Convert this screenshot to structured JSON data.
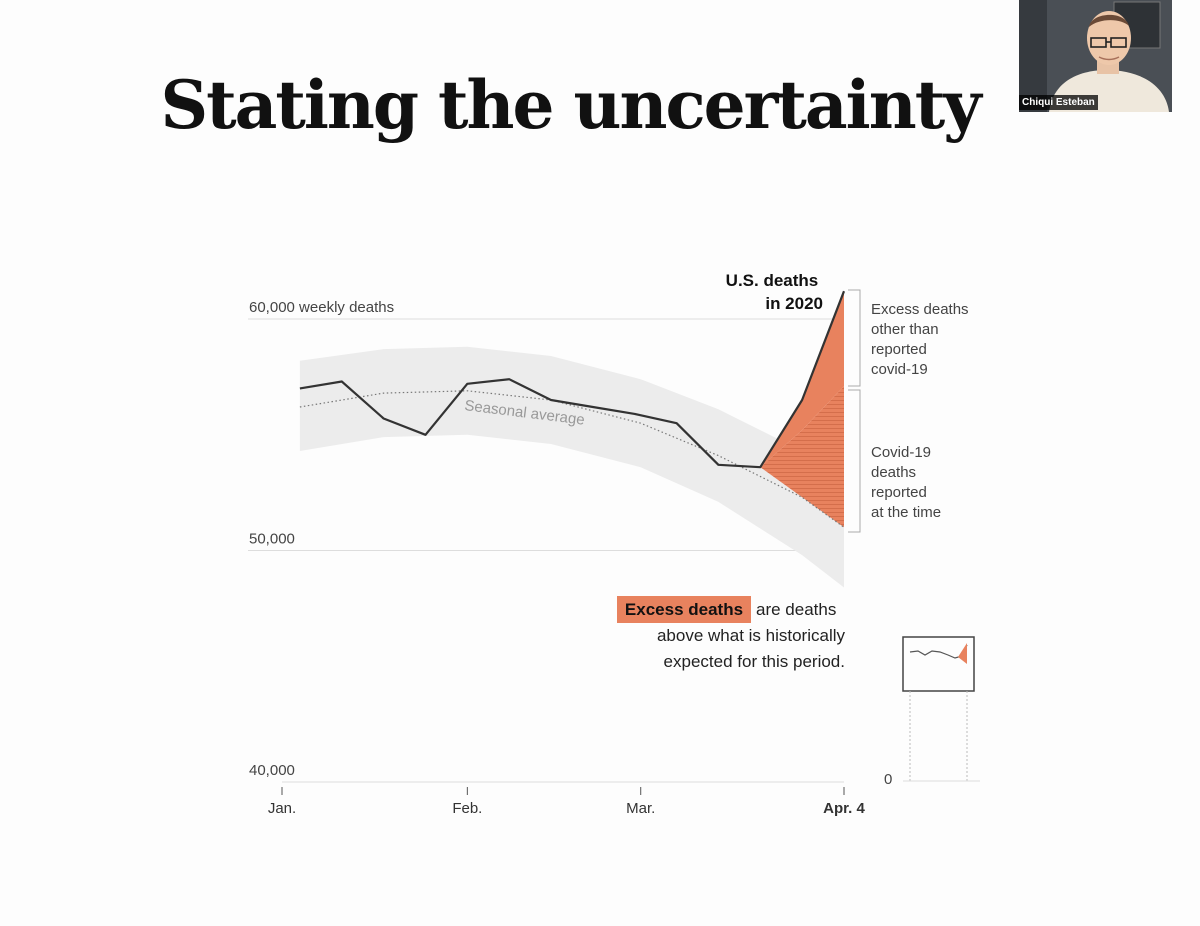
{
  "slide": {
    "title": "Stating the uncertainty"
  },
  "video": {
    "participant_name": "Chiqui Esteban"
  },
  "colors": {
    "excess": "#e8825e",
    "line": "#333333",
    "band": "#ececec",
    "grid": "#dddddd"
  },
  "chart_data": {
    "type": "line",
    "series": [
      {
        "x": [
          "2020-01-04",
          "2020-01-11",
          "2020-01-18",
          "2020-01-25",
          "2020-02-01",
          "2020-02-08",
          "2020-02-15",
          "2020-02-22",
          "2020-02-29",
          "2020-03-07",
          "2020-03-14",
          "2020-03-21",
          "2020-03-28",
          "2020-04-04"
        ],
        "values": [
          57000,
          57300,
          55700,
          55000,
          57200,
          57400,
          56500,
          56200,
          55900,
          55500,
          53700,
          53600,
          56500,
          61200
        ]
      }
    ],
    "seasonal_average": {
      "label": "Seasonal average",
      "x": [
        "2020-01-04",
        "2020-01-18",
        "2020-02-01",
        "2020-02-15",
        "2020-03-01",
        "2020-03-14",
        "2020-03-28",
        "2020-04-04"
      ],
      "values": [
        56200,
        56800,
        56900,
        56500,
        55500,
        54100,
        52300,
        51000
      ],
      "band_low": [
        54300,
        54900,
        55000,
        54600,
        53600,
        52100,
        49800,
        48400
      ],
      "band_high": [
        58200,
        58700,
        58800,
        58400,
        57400,
        56100,
        54300,
        53100
      ]
    },
    "reported_covid_line": {
      "x": [
        "2020-03-21",
        "2020-03-28",
        "2020-04-04"
      ],
      "values": [
        53600,
        55200,
        57100
      ]
    },
    "y_axis": {
      "ticks": [
        40000,
        50000,
        60000
      ],
      "tick_labels": [
        "40,000",
        "50,000",
        "60,000 weekly deaths"
      ],
      "ylim": [
        40000,
        62000
      ]
    },
    "x_axis": {
      "tick_labels": [
        "Jan.",
        "Feb.",
        "Mar.",
        "Apr. 4"
      ],
      "tick_dates": [
        "2020-01-01",
        "2020-02-01",
        "2020-03-01",
        "2020-04-04"
      ]
    },
    "annotations": {
      "series_label": [
        "U.S. deaths",
        "in 2020"
      ],
      "excess_other": [
        "Excess deaths",
        "other than",
        "reported",
        "covid-19"
      ],
      "covid_reported": [
        "Covid-19",
        "deaths",
        "reported",
        "at the time"
      ],
      "definition_highlight": "Excess deaths",
      "definition_rest": [
        "are deaths",
        "above what is historically",
        "expected for this period."
      ]
    },
    "inset": {
      "zero_label": "0"
    }
  }
}
